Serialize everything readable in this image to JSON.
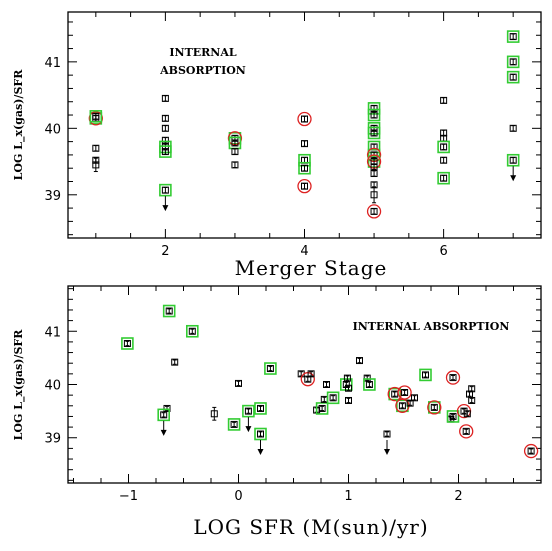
{
  "colors": {
    "green_box": "#33cc33",
    "red_circle": "#dd2222",
    "marker": "#000000"
  },
  "chart_data": [
    {
      "type": "scatter",
      "xlabel": "Merger Stage",
      "ylabel": "LOG L_x(gas)/SFR",
      "xlim": [
        0.6,
        7.4
      ],
      "ylim": [
        38.35,
        41.75
      ],
      "x_ticks": [
        2,
        4,
        6
      ],
      "y_ticks": [
        39,
        40,
        41
      ],
      "annotation": [
        "INTERNAL",
        "ABSORPTION"
      ],
      "points": [
        {
          "x": 1,
          "y": 40.15,
          "err": 0.04,
          "green": true,
          "red": true,
          "limit": false
        },
        {
          "x": 1,
          "y": 40.18,
          "err": 0.04,
          "green": true,
          "red": false,
          "limit": false
        },
        {
          "x": 1,
          "y": 39.7,
          "err": 0.04,
          "green": false,
          "red": false,
          "limit": false
        },
        {
          "x": 1,
          "y": 39.52,
          "err": 0.04,
          "green": false,
          "red": false,
          "limit": false
        },
        {
          "x": 1,
          "y": 39.45,
          "err": 0.1,
          "green": false,
          "red": false,
          "limit": false
        },
        {
          "x": 2,
          "y": 40.45,
          "err": 0.04,
          "green": false,
          "red": false,
          "limit": false
        },
        {
          "x": 2,
          "y": 40.15,
          "err": 0.04,
          "green": false,
          "red": false,
          "limit": false
        },
        {
          "x": 2,
          "y": 40.0,
          "err": 0.04,
          "green": false,
          "red": false,
          "limit": false
        },
        {
          "x": 2,
          "y": 39.82,
          "err": 0.04,
          "green": false,
          "red": false,
          "limit": false
        },
        {
          "x": 2,
          "y": 39.72,
          "err": 0.04,
          "green": true,
          "red": false,
          "limit": false
        },
        {
          "x": 2,
          "y": 39.65,
          "err": 0.04,
          "green": true,
          "red": false,
          "limit": false
        },
        {
          "x": 2,
          "y": 39.07,
          "err": 0.04,
          "green": true,
          "red": false,
          "limit": true
        },
        {
          "x": 3,
          "y": 39.85,
          "err": 0.04,
          "green": true,
          "red": true,
          "limit": false
        },
        {
          "x": 3,
          "y": 39.78,
          "err": 0.04,
          "green": true,
          "red": false,
          "limit": false
        },
        {
          "x": 3,
          "y": 39.65,
          "err": 0.04,
          "green": false,
          "red": false,
          "limit": false
        },
        {
          "x": 3,
          "y": 39.45,
          "err": 0.04,
          "green": false,
          "red": false,
          "limit": false
        },
        {
          "x": 4,
          "y": 40.14,
          "err": 0.04,
          "green": false,
          "red": true,
          "limit": false
        },
        {
          "x": 4,
          "y": 39.77,
          "err": 0.04,
          "green": false,
          "red": false,
          "limit": false
        },
        {
          "x": 4,
          "y": 39.52,
          "err": 0.04,
          "green": true,
          "red": false,
          "limit": false
        },
        {
          "x": 4,
          "y": 39.4,
          "err": 0.04,
          "green": true,
          "red": false,
          "limit": false
        },
        {
          "x": 4,
          "y": 39.13,
          "err": 0.04,
          "green": false,
          "red": true,
          "limit": false
        },
        {
          "x": 5,
          "y": 40.3,
          "err": 0.04,
          "green": true,
          "red": false,
          "limit": false
        },
        {
          "x": 5,
          "y": 40.2,
          "err": 0.04,
          "green": true,
          "red": false,
          "limit": false
        },
        {
          "x": 5,
          "y": 40.0,
          "err": 0.04,
          "green": true,
          "red": false,
          "limit": false
        },
        {
          "x": 5,
          "y": 39.93,
          "err": 0.04,
          "green": true,
          "red": false,
          "limit": false
        },
        {
          "x": 5,
          "y": 39.72,
          "err": 0.04,
          "green": true,
          "red": false,
          "limit": false
        },
        {
          "x": 5,
          "y": 39.6,
          "err": 0.04,
          "green": true,
          "red": true,
          "limit": false
        },
        {
          "x": 5,
          "y": 39.5,
          "err": 0.04,
          "green": true,
          "red": true,
          "limit": false
        },
        {
          "x": 5,
          "y": 39.42,
          "err": 0.04,
          "green": false,
          "red": false,
          "limit": false
        },
        {
          "x": 5,
          "y": 39.32,
          "err": 0.04,
          "green": false,
          "red": false,
          "limit": false
        },
        {
          "x": 5,
          "y": 39.15,
          "err": 0.04,
          "green": false,
          "red": false,
          "limit": false
        },
        {
          "x": 5,
          "y": 39.0,
          "err": 0.12,
          "green": false,
          "red": false,
          "limit": false
        },
        {
          "x": 5,
          "y": 38.75,
          "err": 0.04,
          "green": false,
          "red": true,
          "limit": false
        },
        {
          "x": 6,
          "y": 40.42,
          "err": 0.04,
          "green": false,
          "red": false,
          "limit": false
        },
        {
          "x": 6,
          "y": 39.93,
          "err": 0.04,
          "green": false,
          "red": false,
          "limit": false
        },
        {
          "x": 6,
          "y": 39.85,
          "err": 0.04,
          "green": false,
          "red": false,
          "limit": false
        },
        {
          "x": 6,
          "y": 39.72,
          "err": 0.04,
          "green": true,
          "red": false,
          "limit": false
        },
        {
          "x": 6,
          "y": 39.52,
          "err": 0.04,
          "green": false,
          "red": false,
          "limit": false
        },
        {
          "x": 6,
          "y": 39.25,
          "err": 0.04,
          "green": true,
          "red": false,
          "limit": false
        },
        {
          "x": 7,
          "y": 41.38,
          "err": 0.04,
          "green": true,
          "red": false,
          "limit": false
        },
        {
          "x": 7,
          "y": 41.0,
          "err": 0.04,
          "green": true,
          "red": false,
          "limit": false
        },
        {
          "x": 7,
          "y": 40.77,
          "err": 0.04,
          "green": true,
          "red": false,
          "limit": false
        },
        {
          "x": 7,
          "y": 40.0,
          "err": 0.04,
          "green": false,
          "red": false,
          "limit": false
        },
        {
          "x": 7,
          "y": 39.52,
          "err": 0.04,
          "green": true,
          "red": false,
          "limit": true
        }
      ]
    },
    {
      "type": "scatter",
      "xlabel": "LOG SFR (M(sun)/yr)",
      "ylabel": "LOG L_x(gas)/SFR",
      "xlim": [
        -1.55,
        2.75
      ],
      "ylim": [
        38.15,
        41.85
      ],
      "x_ticks": [
        -1,
        0,
        1,
        2
      ],
      "y_ticks": [
        39,
        40,
        41
      ],
      "annotation": [
        "INTERNAL ABSORPTION"
      ],
      "points": [
        {
          "x": -1.01,
          "y": 40.77,
          "err": 0.04,
          "green": true,
          "red": false,
          "limit": false
        },
        {
          "x": -0.63,
          "y": 41.38,
          "err": 0.04,
          "green": true,
          "red": false,
          "limit": false
        },
        {
          "x": -0.58,
          "y": 40.42,
          "err": 0.04,
          "green": false,
          "red": false,
          "limit": false
        },
        {
          "x": -0.42,
          "y": 41.0,
          "err": 0.04,
          "green": true,
          "red": false,
          "limit": false
        },
        {
          "x": -0.65,
          "y": 39.55,
          "err": 0.04,
          "green": false,
          "red": false,
          "limit": false
        },
        {
          "x": -0.68,
          "y": 39.43,
          "err": 0.04,
          "green": true,
          "red": false,
          "limit": true
        },
        {
          "x": -0.22,
          "y": 39.45,
          "err": 0.12,
          "green": false,
          "red": false,
          "limit": false
        },
        {
          "x": -0.04,
          "y": 39.25,
          "err": 0.04,
          "green": true,
          "red": false,
          "limit": false
        },
        {
          "x": 0.0,
          "y": 40.02,
          "err": 0.04,
          "green": false,
          "red": false,
          "limit": false
        },
        {
          "x": 0.09,
          "y": 39.5,
          "err": 0.04,
          "green": true,
          "red": false,
          "limit": true
        },
        {
          "x": 0.2,
          "y": 39.55,
          "err": 0.04,
          "green": true,
          "red": false,
          "limit": false
        },
        {
          "x": 0.2,
          "y": 39.07,
          "err": 0.04,
          "green": true,
          "red": false,
          "limit": true
        },
        {
          "x": 0.29,
          "y": 40.3,
          "err": 0.04,
          "green": true,
          "red": false,
          "limit": false
        },
        {
          "x": 0.57,
          "y": 40.2,
          "err": 0.04,
          "green": false,
          "red": false,
          "limit": false
        },
        {
          "x": 0.63,
          "y": 40.1,
          "err": 0.04,
          "green": false,
          "red": true,
          "limit": false
        },
        {
          "x": 0.66,
          "y": 40.2,
          "err": 0.04,
          "green": false,
          "red": false,
          "limit": false
        },
        {
          "x": 0.71,
          "y": 39.52,
          "err": 0.04,
          "green": false,
          "red": false,
          "limit": false
        },
        {
          "x": 0.76,
          "y": 39.55,
          "err": 0.04,
          "green": true,
          "red": false,
          "limit": false
        },
        {
          "x": 0.78,
          "y": 39.72,
          "err": 0.04,
          "green": false,
          "red": false,
          "limit": false
        },
        {
          "x": 0.8,
          "y": 40.0,
          "err": 0.04,
          "green": false,
          "red": false,
          "limit": false
        },
        {
          "x": 0.86,
          "y": 39.75,
          "err": 0.04,
          "green": true,
          "red": false,
          "limit": false
        },
        {
          "x": 0.98,
          "y": 40.0,
          "err": 0.04,
          "green": true,
          "red": false,
          "limit": false
        },
        {
          "x": 0.99,
          "y": 40.12,
          "err": 0.04,
          "green": false,
          "red": false,
          "limit": false
        },
        {
          "x": 1.0,
          "y": 39.93,
          "err": 0.04,
          "green": false,
          "red": false,
          "limit": false
        },
        {
          "x": 1.0,
          "y": 39.7,
          "err": 0.04,
          "green": false,
          "red": false,
          "limit": false
        },
        {
          "x": 1.1,
          "y": 40.45,
          "err": 0.04,
          "green": false,
          "red": false,
          "limit": false
        },
        {
          "x": 1.17,
          "y": 40.12,
          "err": 0.04,
          "green": false,
          "red": false,
          "limit": false
        },
        {
          "x": 1.19,
          "y": 40.0,
          "err": 0.04,
          "green": true,
          "red": false,
          "limit": false
        },
        {
          "x": 1.35,
          "y": 39.07,
          "err": 0.04,
          "green": false,
          "red": false,
          "limit": true
        },
        {
          "x": 1.42,
          "y": 39.82,
          "err": 0.04,
          "green": true,
          "red": true,
          "limit": false
        },
        {
          "x": 1.49,
          "y": 39.6,
          "err": 0.04,
          "green": true,
          "red": true,
          "limit": false
        },
        {
          "x": 1.51,
          "y": 39.85,
          "err": 0.04,
          "green": false,
          "red": true,
          "limit": false
        },
        {
          "x": 1.56,
          "y": 39.65,
          "err": 0.04,
          "green": false,
          "red": false,
          "limit": false
        },
        {
          "x": 1.6,
          "y": 39.75,
          "err": 0.04,
          "green": false,
          "red": false,
          "limit": false
        },
        {
          "x": 1.7,
          "y": 40.18,
          "err": 0.04,
          "green": true,
          "red": false,
          "limit": false
        },
        {
          "x": 1.78,
          "y": 39.57,
          "err": 0.04,
          "green": true,
          "red": true,
          "limit": false
        },
        {
          "x": 1.93,
          "y": 39.35,
          "err": 0.04,
          "green": false,
          "red": false,
          "limit": false
        },
        {
          "x": 1.95,
          "y": 39.4,
          "err": 0.04,
          "green": true,
          "red": false,
          "limit": false
        },
        {
          "x": 1.95,
          "y": 40.13,
          "err": 0.04,
          "green": false,
          "red": true,
          "limit": false
        },
        {
          "x": 2.05,
          "y": 39.5,
          "err": 0.04,
          "green": false,
          "red": true,
          "limit": false
        },
        {
          "x": 2.07,
          "y": 39.12,
          "err": 0.04,
          "green": false,
          "red": true,
          "limit": false
        },
        {
          "x": 2.08,
          "y": 39.45,
          "err": 0.04,
          "green": false,
          "red": false,
          "limit": false
        },
        {
          "x": 2.1,
          "y": 39.82,
          "err": 0.04,
          "green": false,
          "red": false,
          "limit": false
        },
        {
          "x": 2.12,
          "y": 39.92,
          "err": 0.04,
          "green": false,
          "red": false,
          "limit": false
        },
        {
          "x": 2.12,
          "y": 39.7,
          "err": 0.04,
          "green": false,
          "red": false,
          "limit": false
        },
        {
          "x": 2.66,
          "y": 38.75,
          "err": 0.04,
          "green": false,
          "red": true,
          "limit": false
        }
      ]
    }
  ]
}
